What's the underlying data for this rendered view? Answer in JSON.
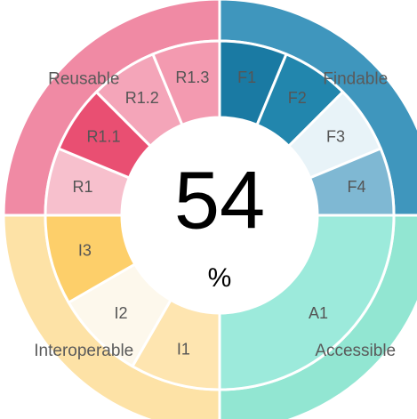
{
  "score": {
    "value": "54",
    "unit": "%"
  },
  "quadrants": [
    {
      "name": "Findable",
      "color": "#3f96bd",
      "segments": [
        {
          "label": "F1",
          "color": "#1a7aa3"
        },
        {
          "label": "F2",
          "color": "#2286ad"
        },
        {
          "label": "F3",
          "color": "#e8f3f8"
        },
        {
          "label": "F4",
          "color": "#7fb8d3"
        }
      ]
    },
    {
      "name": "Accessible",
      "color": "#92e6d2",
      "segments": [
        {
          "label": "A1",
          "color": "#9ceadb"
        }
      ]
    },
    {
      "name": "Interoperable",
      "color": "#fde2a6",
      "segments": [
        {
          "label": "I1",
          "color": "#fee5b0"
        },
        {
          "label": "I2",
          "color": "#fdf8ec"
        },
        {
          "label": "I3",
          "color": "#fdcf6a"
        }
      ]
    },
    {
      "name": "Reusable",
      "color": "#f08aa4",
      "segments": [
        {
          "label": "R1",
          "color": "#f7c0cd"
        },
        {
          "label": "R1.1",
          "color": "#e94f72"
        },
        {
          "label": "R1.2",
          "color": "#f4a5b9"
        },
        {
          "label": "R1.3",
          "color": "#f39ab0"
        }
      ]
    }
  ]
}
